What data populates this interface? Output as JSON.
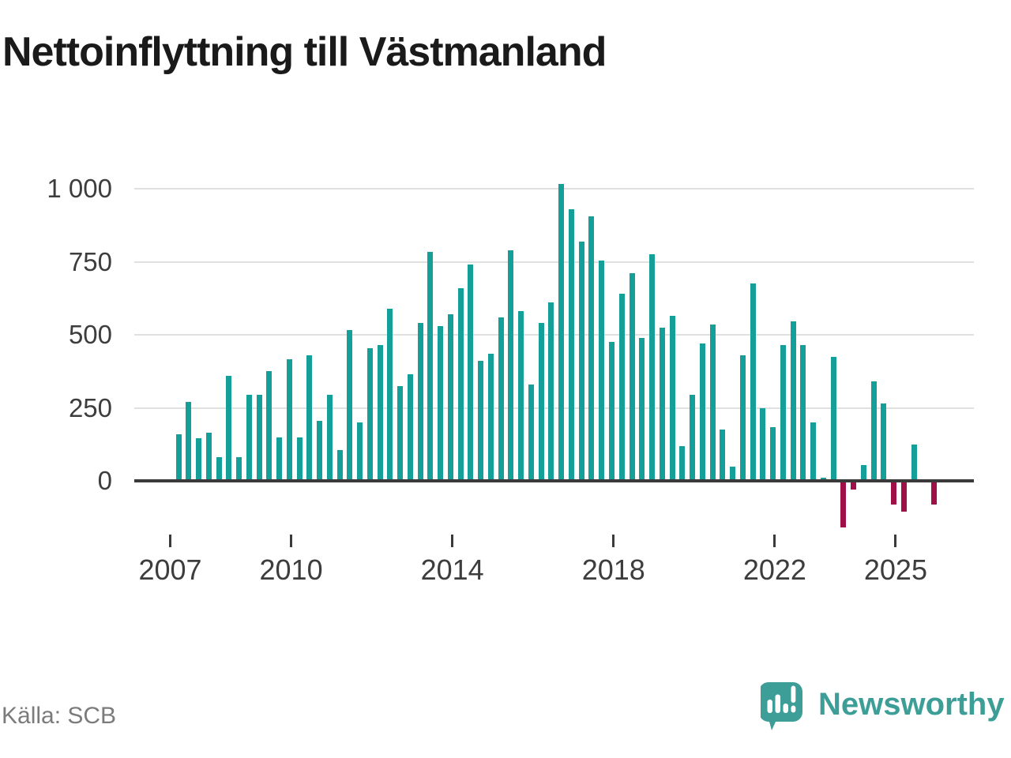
{
  "title": "Nettoinflyttning till Västmanland",
  "source": "Källa: SCB",
  "brand": {
    "name": "Newsworthy",
    "color": "#3d9e97"
  },
  "colors": {
    "positive_bar": "#14a098",
    "negative_bar": "#a01048",
    "grid": "#e0e0e0",
    "axis": "#3a3a3a",
    "tick_text": "#3d3d3d",
    "title_text": "#1a1a1a",
    "source_text": "#7b7b7b"
  },
  "chart_data": {
    "type": "bar",
    "title": "Nettoinflyttning till Västmanland",
    "frequency": "quarterly",
    "start_quarter": "2007Q1",
    "end_quarter": "2025Q4",
    "values": [
      160,
      270,
      145,
      165,
      80,
      360,
      80,
      295,
      295,
      375,
      150,
      415,
      150,
      430,
      205,
      295,
      105,
      515,
      200,
      455,
      465,
      590,
      325,
      365,
      540,
      785,
      530,
      570,
      660,
      740,
      410,
      435,
      560,
      790,
      580,
      330,
      540,
      610,
      1015,
      930,
      820,
      905,
      755,
      475,
      640,
      710,
      490,
      775,
      525,
      565,
      120,
      295,
      470,
      535,
      175,
      50,
      430,
      675,
      250,
      185,
      465,
      545,
      465,
      200,
      10,
      425,
      -160,
      -30,
      55,
      340,
      265,
      -80,
      -105,
      125,
      0,
      -80
    ],
    "yticks": [
      0,
      250,
      500,
      750,
      1000
    ],
    "ytick_labels": [
      "0",
      "250",
      "500",
      "750",
      "1 000"
    ],
    "ylim": [
      -200,
      1050
    ],
    "xticks": [
      {
        "label": "2007",
        "index": 0
      },
      {
        "label": "2010",
        "index": 12
      },
      {
        "label": "2014",
        "index": 28
      },
      {
        "label": "2018",
        "index": 44
      },
      {
        "label": "2022",
        "index": 60
      },
      {
        "label": "2025",
        "index": 72
      }
    ],
    "grid": true,
    "legend": false
  }
}
